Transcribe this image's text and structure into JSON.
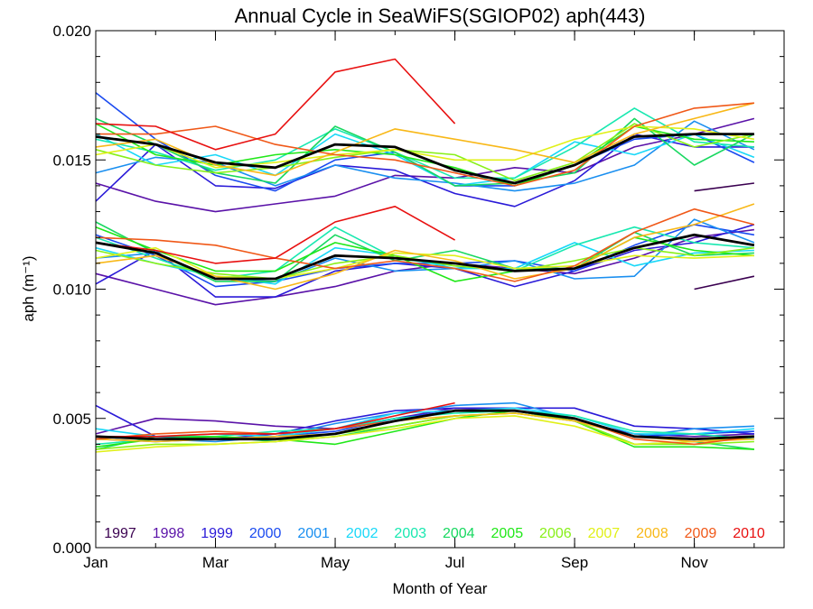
{
  "chart_data": {
    "type": "line",
    "title": "Annual Cycle in SeaWiFS(SGIOP02) aph(443)",
    "xlabel": "Month of Year",
    "ylabel": "aph (m⁻¹)",
    "xlim": [
      1,
      12.5
    ],
    "ylim": [
      0.0,
      0.02
    ],
    "x_ticks": [
      {
        "value": 1,
        "label": "Jan"
      },
      {
        "value": 3,
        "label": "Mar"
      },
      {
        "value": 5,
        "label": "May"
      },
      {
        "value": 7,
        "label": "Jul"
      },
      {
        "value": 9,
        "label": "Sep"
      },
      {
        "value": 11,
        "label": "Nov"
      }
    ],
    "y_ticks": [
      {
        "value": 0.0,
        "label": "0.000"
      },
      {
        "value": 0.005,
        "label": "0.005"
      },
      {
        "value": 0.01,
        "label": "0.010"
      },
      {
        "value": 0.015,
        "label": "0.015"
      },
      {
        "value": 0.02,
        "label": "0.020"
      }
    ],
    "legend_placement": "bottom",
    "grid": false,
    "x": [
      1,
      2,
      3,
      4,
      5,
      6,
      7,
      8,
      9,
      10,
      11,
      12
    ],
    "series": [
      {
        "name": "1997",
        "color": "#3a0050",
        "lines": [
          [
            null,
            null,
            null,
            null,
            null,
            null,
            null,
            null,
            null,
            null,
            0.0138,
            0.0141
          ],
          [
            null,
            null,
            null,
            null,
            null,
            null,
            null,
            null,
            null,
            null,
            0.01,
            0.0105
          ],
          [
            null,
            null,
            null,
            null,
            null,
            null,
            null,
            null,
            null,
            null,
            null,
            null
          ]
        ]
      },
      {
        "name": "1998",
        "color": "#5a12a8",
        "lines": [
          [
            0.0141,
            0.0134,
            0.013,
            0.0133,
            0.0136,
            0.0144,
            0.0143,
            0.0147,
            0.0145,
            0.0155,
            0.016,
            0.0166
          ],
          [
            0.0106,
            0.01,
            0.0094,
            0.0097,
            0.0101,
            0.0107,
            0.011,
            0.0108,
            0.0106,
            0.0112,
            0.012,
            0.0123
          ],
          [
            0.0044,
            0.005,
            0.0049,
            0.0047,
            0.0046,
            0.005,
            0.0054,
            0.0053,
            0.0049,
            0.0044,
            0.0043,
            0.0044
          ]
        ]
      },
      {
        "name": "1999",
        "color": "#2a1ad8",
        "lines": [
          [
            0.0134,
            0.0156,
            0.014,
            0.0139,
            0.0148,
            0.0146,
            0.0137,
            0.0132,
            0.0142,
            0.016,
            0.0155,
            0.0155
          ],
          [
            0.0102,
            0.0115,
            0.0097,
            0.0097,
            0.0107,
            0.011,
            0.0108,
            0.0101,
            0.0107,
            0.0115,
            0.0118,
            0.0125
          ],
          [
            0.0055,
            0.0043,
            0.0042,
            0.0044,
            0.0049,
            0.0053,
            0.0054,
            0.0054,
            0.0054,
            0.0047,
            0.0046,
            0.0044
          ]
        ]
      },
      {
        "name": "2000",
        "color": "#1a4af0",
        "lines": [
          [
            0.0176,
            0.0158,
            0.0144,
            0.0138,
            0.015,
            0.0153,
            0.014,
            0.014,
            0.0148,
            0.0158,
            0.016,
            0.0149
          ],
          [
            0.0121,
            0.0113,
            0.0101,
            0.0103,
            0.0108,
            0.011,
            0.011,
            0.0111,
            0.0107,
            0.0117,
            0.0125,
            0.0121
          ],
          [
            0.0042,
            0.0041,
            0.0042,
            0.0043,
            0.0045,
            0.005,
            0.0053,
            0.0053,
            0.005,
            0.0043,
            0.0044,
            0.0045
          ]
        ]
      },
      {
        "name": "2001",
        "color": "#1a8ff0",
        "lines": [
          [
            0.0145,
            0.0151,
            0.0149,
            0.014,
            0.0148,
            0.0143,
            0.0141,
            0.0138,
            0.0141,
            0.0148,
            0.0165,
            0.0154
          ],
          [
            0.0112,
            0.0114,
            0.0104,
            0.0103,
            0.0112,
            0.0107,
            0.0108,
            0.0111,
            0.0104,
            0.0105,
            0.0127,
            0.0118
          ],
          [
            0.0043,
            0.0042,
            0.0041,
            0.0043,
            0.0048,
            0.0052,
            0.0055,
            0.0056,
            0.005,
            0.0043,
            0.0046,
            0.0047
          ]
        ]
      },
      {
        "name": "2002",
        "color": "#18d8f8",
        "lines": [
          [
            0.016,
            0.0148,
            0.0152,
            0.0144,
            0.016,
            0.0152,
            0.014,
            0.0143,
            0.0157,
            0.0152,
            0.016,
            0.0151
          ],
          [
            0.0116,
            0.011,
            0.0105,
            0.0102,
            0.0116,
            0.0113,
            0.0108,
            0.0108,
            0.0118,
            0.0109,
            0.0114,
            0.0115
          ],
          [
            0.0046,
            0.0043,
            0.0044,
            0.0043,
            0.0046,
            0.0052,
            0.0053,
            0.0054,
            0.0051,
            0.0044,
            0.0044,
            0.0046
          ]
        ]
      },
      {
        "name": "2003",
        "color": "#18e8b0",
        "lines": [
          [
            0.0158,
            0.0153,
            0.0146,
            0.015,
            0.0162,
            0.0153,
            0.0143,
            0.0143,
            0.0155,
            0.017,
            0.0157,
            0.0155
          ],
          [
            0.012,
            0.0112,
            0.0104,
            0.0107,
            0.0124,
            0.0112,
            0.0109,
            0.0107,
            0.0117,
            0.0124,
            0.0118,
            0.0116
          ],
          [
            0.004,
            0.0042,
            0.0043,
            0.0045,
            0.0046,
            0.005,
            0.0052,
            0.0053,
            0.0051,
            0.0045,
            0.0044,
            0.0042
          ]
        ]
      },
      {
        "name": "2004",
        "color": "#18d860",
        "lines": [
          [
            0.0166,
            0.0156,
            0.0145,
            0.0141,
            0.0163,
            0.0153,
            0.014,
            0.0141,
            0.0145,
            0.0166,
            0.0148,
            0.016
          ],
          [
            0.0126,
            0.0114,
            0.0103,
            0.0103,
            0.0121,
            0.0111,
            0.0115,
            0.0108,
            0.0108,
            0.0122,
            0.0113,
            0.0114
          ],
          [
            0.0038,
            0.0043,
            0.0043,
            0.0041,
            0.0043,
            0.0047,
            0.0051,
            0.0052,
            0.0049,
            0.004,
            0.0041,
            0.0038
          ]
        ]
      },
      {
        "name": "2005",
        "color": "#20e818",
        "lines": [
          [
            0.0164,
            0.0152,
            0.0148,
            0.0152,
            0.0154,
            0.0152,
            0.0147,
            0.014,
            0.0148,
            0.0163,
            0.0158,
            0.0157
          ],
          [
            0.0124,
            0.0115,
            0.0107,
            0.0107,
            0.0118,
            0.0113,
            0.0103,
            0.0107,
            0.0108,
            0.012,
            0.0115,
            0.0113
          ],
          [
            0.0039,
            0.0042,
            0.0043,
            0.0042,
            0.004,
            0.0045,
            0.005,
            0.0053,
            0.0049,
            0.0039,
            0.0039,
            0.0038
          ]
        ]
      },
      {
        "name": "2006",
        "color": "#88f018",
        "lines": [
          [
            0.0154,
            0.0148,
            0.0145,
            0.0147,
            0.0151,
            0.0154,
            0.0152,
            0.0142,
            0.0149,
            0.0164,
            0.0155,
            0.016
          ],
          [
            0.0115,
            0.011,
            0.0106,
            0.0104,
            0.011,
            0.0113,
            0.0109,
            0.0107,
            0.0111,
            0.0116,
            0.0113,
            0.0116
          ],
          [
            0.0038,
            0.004,
            0.004,
            0.0041,
            0.0044,
            0.0047,
            0.0051,
            0.0052,
            0.0049,
            0.004,
            0.004,
            0.0041
          ]
        ]
      },
      {
        "name": "2007",
        "color": "#e0f018",
        "lines": [
          [
            0.0152,
            0.0156,
            0.0147,
            0.0149,
            0.0152,
            0.0154,
            0.015,
            0.015,
            0.0158,
            0.0163,
            0.0162,
            0.0158
          ],
          [
            0.0112,
            0.0116,
            0.0105,
            0.0104,
            0.0108,
            0.0114,
            0.0113,
            0.0108,
            0.0109,
            0.0113,
            0.0112,
            0.0113
          ],
          [
            0.0037,
            0.0039,
            0.004,
            0.0041,
            0.0043,
            0.0046,
            0.005,
            0.0051,
            0.0047,
            0.004,
            0.0041,
            0.0043
          ]
        ]
      },
      {
        "name": "2008",
        "color": "#f8b818",
        "lines": [
          [
            0.0155,
            0.0158,
            0.0148,
            0.0144,
            0.0153,
            0.0162,
            0.0158,
            0.0154,
            0.0149,
            0.016,
            0.0166,
            0.0172
          ],
          [
            0.011,
            0.0113,
            0.0105,
            0.01,
            0.0106,
            0.0115,
            0.0111,
            0.0104,
            0.0108,
            0.012,
            0.0125,
            0.0133
          ],
          [
            0.0042,
            0.0041,
            0.0042,
            0.0043,
            0.0044,
            0.0049,
            0.0051,
            0.0052,
            0.0049,
            0.0043,
            0.0041,
            0.0042
          ]
        ]
      },
      {
        "name": "2009",
        "color": "#f05818",
        "lines": [
          [
            0.016,
            0.016,
            0.0163,
            0.0156,
            0.0152,
            0.015,
            0.0145,
            0.014,
            0.0146,
            0.0163,
            0.017,
            0.0172
          ],
          [
            0.012,
            0.0119,
            0.0117,
            0.0112,
            0.0108,
            0.0111,
            0.0108,
            0.0103,
            0.0109,
            0.0122,
            0.0131,
            0.0125
          ],
          [
            0.0042,
            0.0044,
            0.0045,
            0.0044,
            0.0046,
            0.0049,
            0.0053,
            0.0053,
            0.005,
            0.0042,
            0.004,
            0.0043
          ]
        ]
      },
      {
        "name": "2010",
        "color": "#e81010",
        "lines": [
          [
            0.0164,
            0.0163,
            0.0154,
            0.016,
            0.0184,
            0.0189,
            0.0164,
            null,
            null,
            null,
            null,
            null
          ],
          [
            0.0118,
            0.0115,
            0.011,
            0.0112,
            0.0126,
            0.0132,
            0.0119,
            null,
            null,
            null,
            null,
            null
          ],
          [
            0.0043,
            0.0043,
            0.0044,
            0.0044,
            0.0046,
            0.0051,
            0.0056,
            null,
            null,
            null,
            null,
            null
          ]
        ]
      }
    ],
    "mean": {
      "color": "#000000",
      "lines": [
        [
          0.0159,
          0.0156,
          0.0149,
          0.0147,
          0.0156,
          0.0155,
          0.0146,
          0.0141,
          0.0148,
          0.0159,
          0.016,
          0.016
        ],
        [
          0.0118,
          0.0114,
          0.0104,
          0.0104,
          0.0113,
          0.0112,
          0.011,
          0.0107,
          0.0108,
          0.0116,
          0.0121,
          0.0117
        ],
        [
          0.0043,
          0.0042,
          0.0042,
          0.0042,
          0.0044,
          0.0049,
          0.0053,
          0.0053,
          0.005,
          0.0043,
          0.0042,
          0.0043
        ]
      ]
    }
  }
}
